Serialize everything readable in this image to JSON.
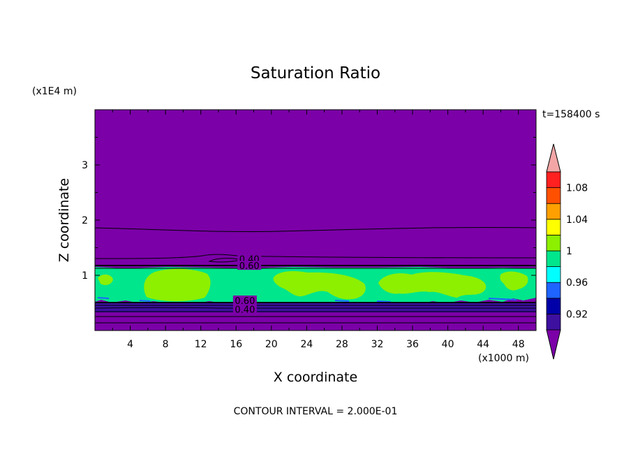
{
  "chart_data": {
    "type": "contour",
    "title": "Saturation Ratio",
    "xlabel": "X coordinate",
    "ylabel": "Z coordinate",
    "x_unit": "(x1000 m)",
    "y_unit": "(x1E4 m)",
    "time_label": "t=158400 s",
    "footer": "CONTOUR INTERVAL = 2.000E-01",
    "xlim": [
      0,
      50
    ],
    "ylim": [
      0,
      4
    ],
    "x_ticks": [
      4,
      8,
      12,
      16,
      20,
      24,
      28,
      32,
      36,
      40,
      44,
      48
    ],
    "y_ticks": [
      1,
      2,
      3
    ],
    "contour_labels": [
      {
        "text": "0.40",
        "x": 17.5,
        "y": 1.27
      },
      {
        "text": "0.60",
        "x": 17.5,
        "y": 1.15
      },
      {
        "text": "0.60",
        "x": 17.0,
        "y": 0.52
      },
      {
        "text": "0.40",
        "x": 17.0,
        "y": 0.36
      }
    ],
    "colorbar": {
      "levels": [
        0.92,
        0.96,
        1,
        1.04,
        1.08
      ],
      "band_colors": [
        "#3d10a0",
        "#0000a8",
        "#1e64ff",
        "#00ffff",
        "#00e68c",
        "#8cf000",
        "#ffff00",
        "#ffa000",
        "#ff5000",
        "#ff2020"
      ],
      "under_color": "#7b00a8",
      "over_color": "#f4a6a6"
    },
    "fill_colors": {
      "background": "#7b00a8",
      "cloud_base": "#00e68c",
      "cloud_patch": "#8cf000",
      "low_band": "#3d10a0"
    }
  }
}
